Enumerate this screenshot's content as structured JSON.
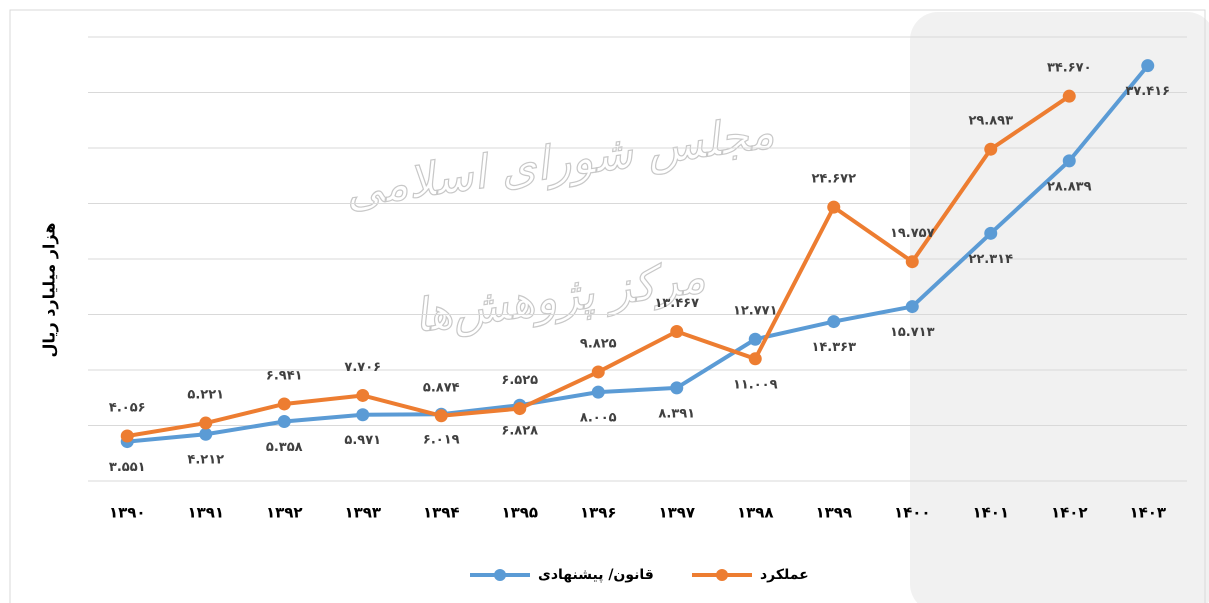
{
  "chart_data": {
    "type": "line",
    "y_label": "هزار میلیارد ریال",
    "watermark": [
      "مجلس شورای اسلامی",
      "مرکز پژوهش‌ها"
    ],
    "categories": [
      "۱۳۹۰",
      "۱۳۹۱",
      "۱۳۹۲",
      "۱۳۹۳",
      "۱۳۹۴",
      "۱۳۹۵",
      "۱۳۹۶",
      "۱۳۹۷",
      "۱۳۹۸",
      "۱۳۹۹",
      "۱۴۰۰",
      "۱۴۰۱",
      "۱۴۰۲",
      "۱۴۰۳"
    ],
    "series": [
      {
        "name": "قانون/ پیشنهادی",
        "color": "#5b9bd5",
        "values": [
          3.551,
          4.212,
          5.358,
          5.971,
          6.019,
          6.828,
          8.005,
          8.391,
          12.771,
          14.363,
          15.713,
          22.314,
          28.839,
          37.416
        ],
        "value_labels": [
          "۳.۵۵۱",
          "۴.۲۱۲",
          "۵.۳۵۸",
          "۵.۹۷۱",
          "۶.۰۱۹",
          "۶.۸۲۸",
          "۸.۰۰۵",
          "۸.۳۹۱",
          "۱۲.۷۷۱",
          "۱۴.۳۶۳",
          "۱۵.۷۱۳",
          "۲۲.۳۱۴",
          "۲۸.۸۳۹",
          "۳۷.۴۱۶"
        ]
      },
      {
        "name": "عملکرد",
        "color": "#ed7d31",
        "values": [
          4.056,
          5.221,
          6.941,
          7.706,
          5.874,
          6.525,
          9.825,
          13.467,
          11.009,
          24.672,
          19.757,
          29.893,
          34.67,
          null
        ],
        "value_labels": [
          "۴.۰۵۶",
          "۵.۲۲۱",
          "۶.۹۴۱",
          "۷.۷۰۶",
          "۵.۸۷۴",
          "۶.۵۲۵",
          "۹.۸۲۵",
          "۱۳.۴۶۷",
          "۱۱.۰۰۹",
          "۲۴.۶۷۲",
          "۱۹.۷۵۷",
          "۲۹.۸۹۳",
          "۳۴.۶۷۰",
          null
        ]
      }
    ],
    "ylim": [
      0,
      40
    ],
    "yticks": [
      0,
      5,
      10,
      15,
      20,
      25,
      30,
      35,
      40
    ],
    "grid": true,
    "legend": "bottom"
  }
}
